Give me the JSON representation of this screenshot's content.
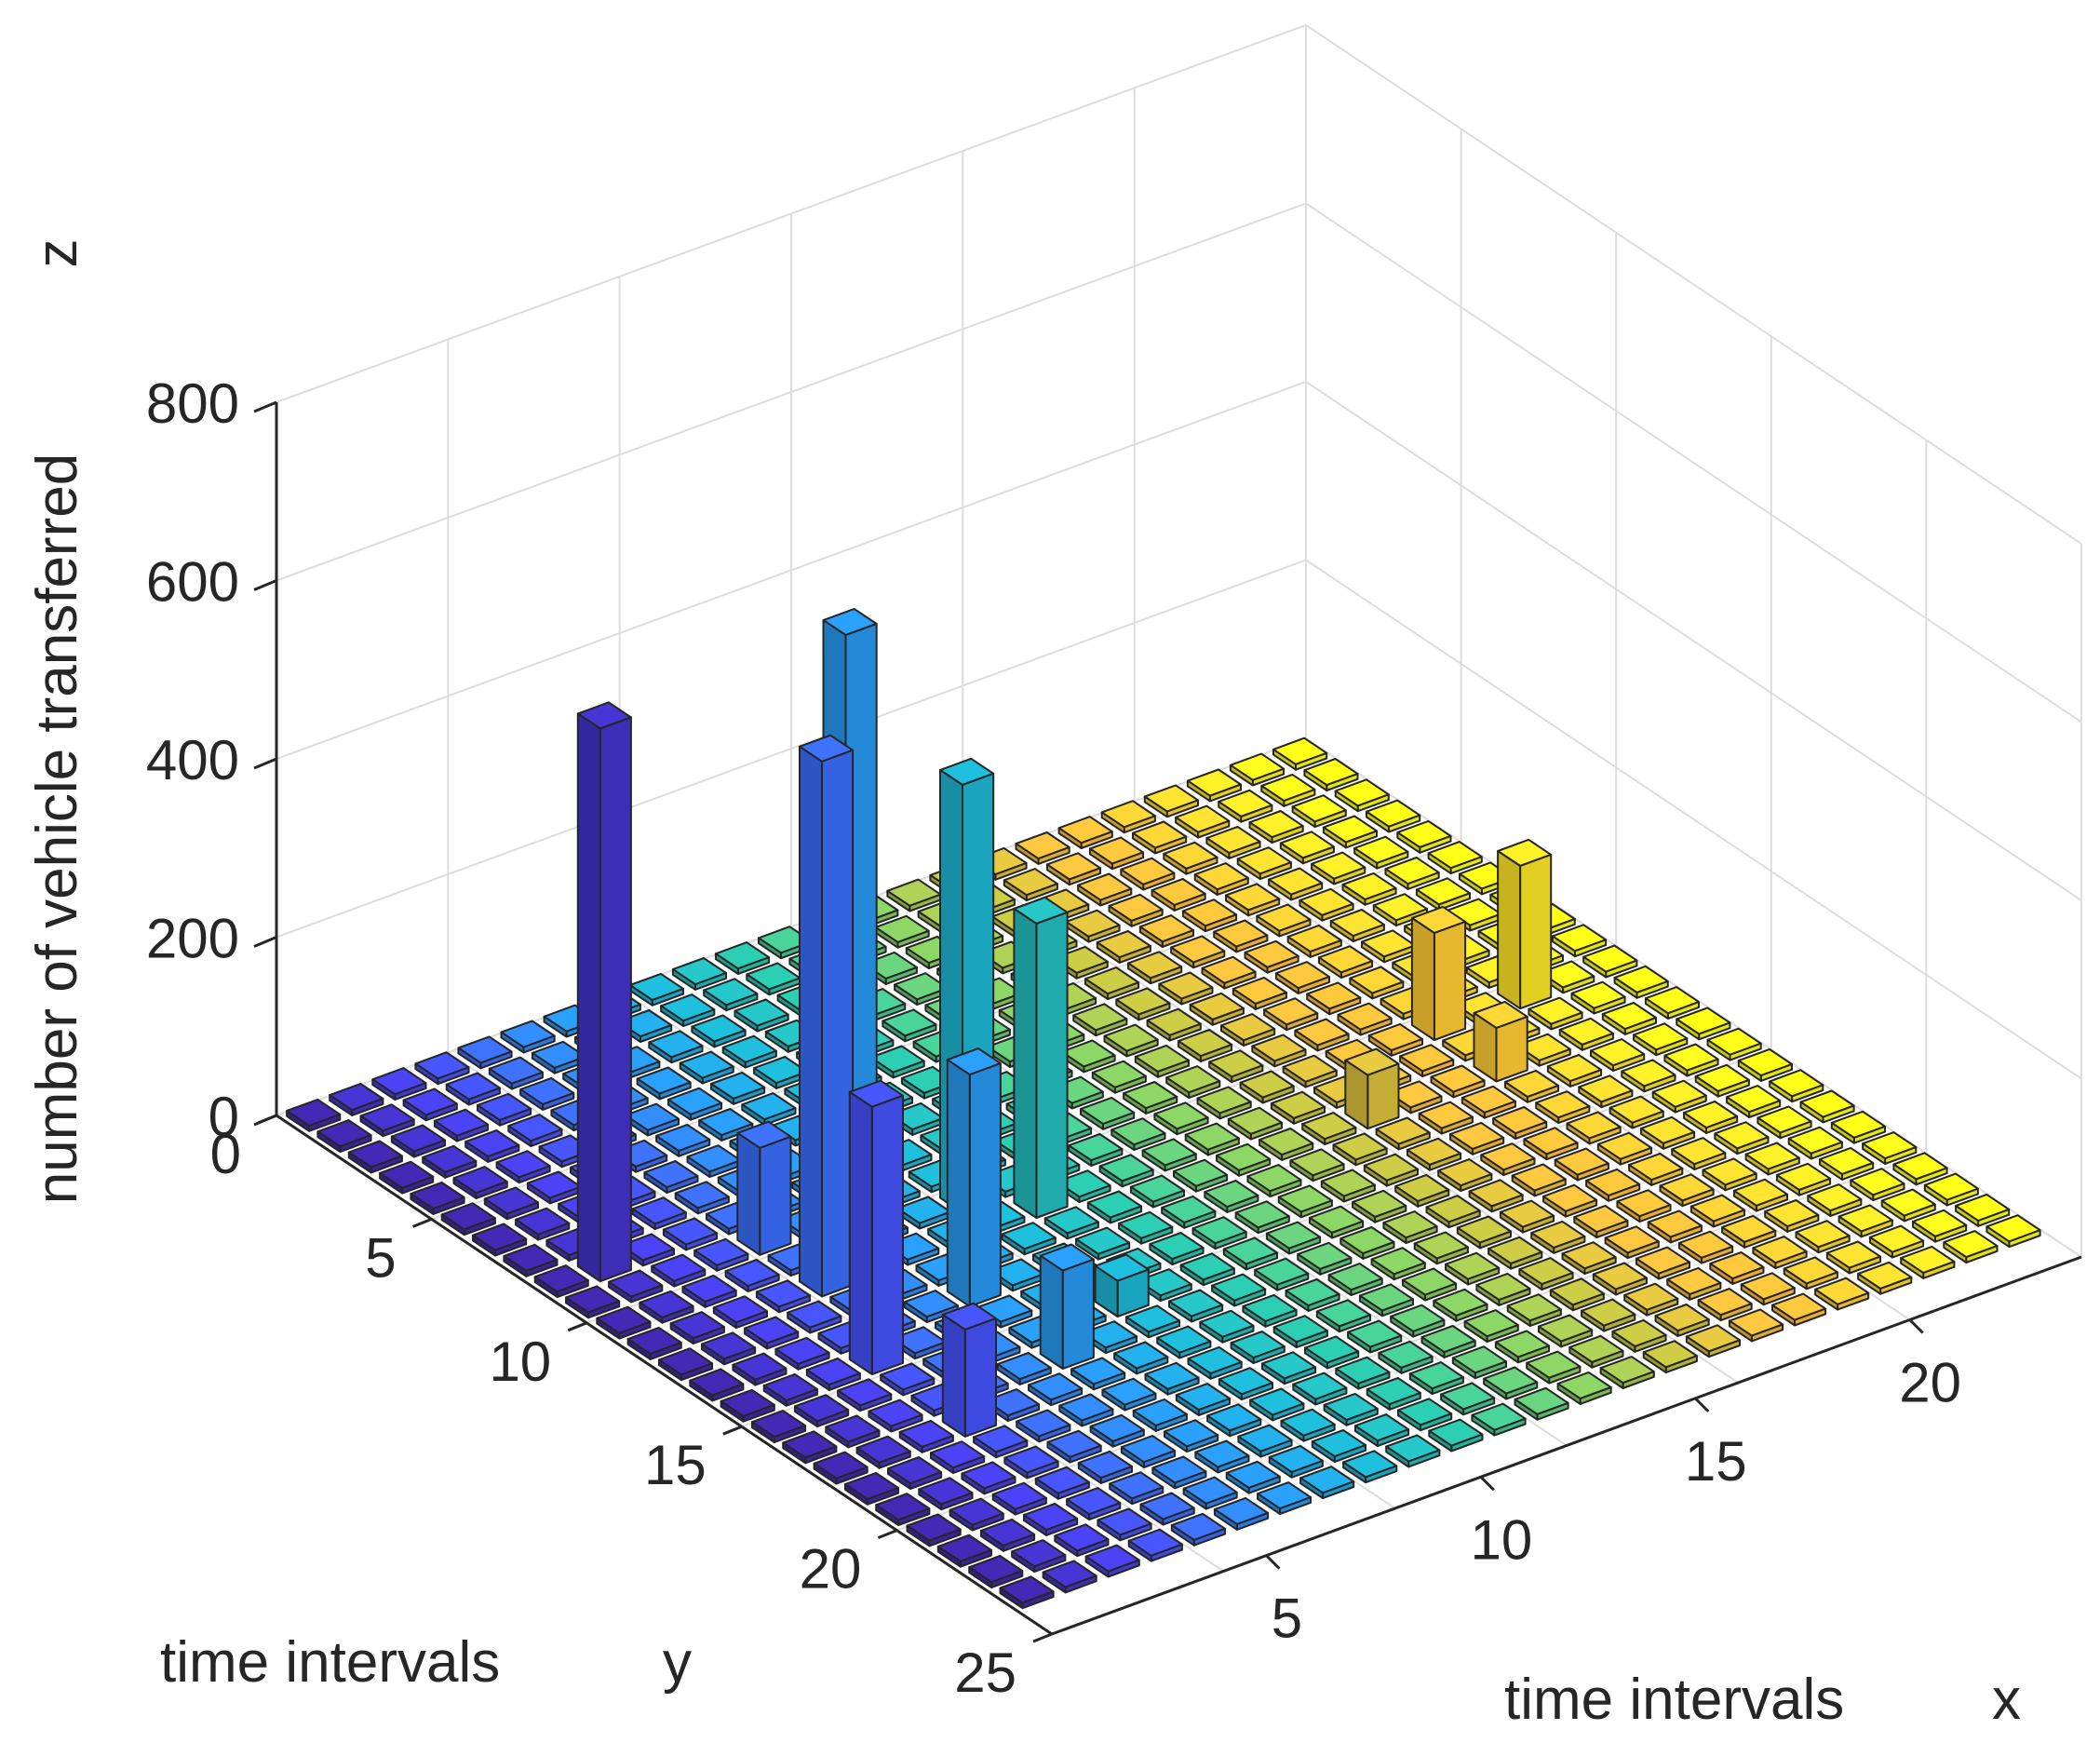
{
  "chart_data": {
    "type": "bar3",
    "title": "",
    "xlabel": "time intervals",
    "ylabel": "time intervals",
    "zlabel": "number of vehicle transferred",
    "x_axis_letter": "x",
    "y_axis_letter": "y",
    "z_axis_letter": "z",
    "xlim": [
      0,
      24
    ],
    "ylim": [
      0,
      25
    ],
    "zlim": [
      0,
      800
    ],
    "x_ticks": [
      5,
      10,
      15,
      20
    ],
    "y_ticks": [
      0,
      5,
      10,
      15,
      20,
      25
    ],
    "z_ticks": [
      0,
      200,
      400,
      600,
      800
    ],
    "grid": true,
    "grid_size": {
      "nx": 24,
      "ny": 24
    },
    "colormap": [
      "#3e26a8",
      "#4745f3",
      "#2e87f7",
      "#1bb0d4",
      "#2ac2a3",
      "#7cc862",
      "#c9bd3c",
      "#fdb93a",
      "#f7d92a",
      "#f9fb15"
    ],
    "nonzero_bars": [
      {
        "x": 2,
        "y": 9,
        "z": 620
      },
      {
        "x": 5,
        "y": 10,
        "z": 120
      },
      {
        "x": 5,
        "y": 12,
        "z": 600
      },
      {
        "x": 4,
        "y": 15,
        "z": 300
      },
      {
        "x": 4,
        "y": 18,
        "z": 120
      },
      {
        "x": 7,
        "y": 10,
        "z": 660
      },
      {
        "x": 7,
        "y": 14,
        "z": 260
      },
      {
        "x": 9,
        "y": 11,
        "z": 480
      },
      {
        "x": 7,
        "y": 17,
        "z": 110
      },
      {
        "x": 10,
        "y": 12,
        "z": 330
      },
      {
        "x": 9,
        "y": 16,
        "z": 40
      },
      {
        "x": 17,
        "y": 13,
        "z": 60
      },
      {
        "x": 20,
        "y": 11,
        "z": 120
      },
      {
        "x": 22,
        "y": 11,
        "z": 160
      },
      {
        "x": 20,
        "y": 13,
        "z": 60
      }
    ]
  }
}
